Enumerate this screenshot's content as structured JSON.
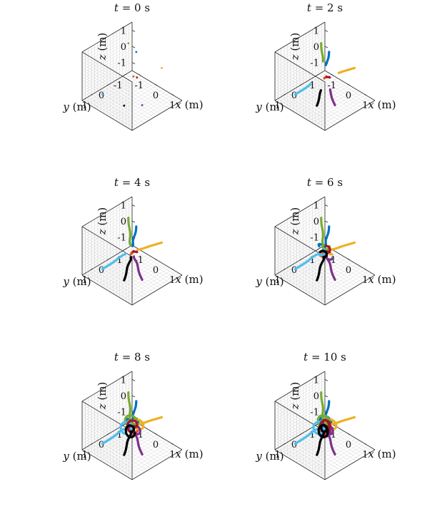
{
  "chart_data": {
    "type": "line3d",
    "layout": "3x2 grid of 3D trajectory plots",
    "axes": {
      "xlabel": {
        "var": "x",
        "unit": "(m)"
      },
      "ylabel": {
        "var": "y",
        "unit": "(m)"
      },
      "zlabel": {
        "var": "z",
        "unit": "(m)"
      },
      "xticks": [
        "-1",
        "0",
        "1"
      ],
      "yticks": [
        "-1",
        "0",
        "1"
      ],
      "zticks": [
        "-1",
        "0",
        "1"
      ],
      "xlim": [
        -1.5,
        1.5
      ],
      "ylim": [
        -1.5,
        1.5
      ],
      "zlim": [
        -1.5,
        1.5
      ],
      "grid": true
    },
    "series_colors": [
      "#0072BD",
      "#D95319",
      "#EDB120",
      "#7E2F8E",
      "#77AC30",
      "#4DBEEE",
      "#A2142F",
      "#000000"
    ],
    "panels": [
      {
        "title": {
          "var": "t",
          "rest": " = 0 s"
        },
        "t": 0
      },
      {
        "title": {
          "var": "t",
          "rest": " = 2 s"
        },
        "t": 2
      },
      {
        "title": {
          "var": "t",
          "rest": " = 4 s"
        },
        "t": 4
      },
      {
        "title": {
          "var": "t",
          "rest": " = 6 s"
        },
        "t": 6
      },
      {
        "title": {
          "var": "t",
          "rest": " = 8 s"
        },
        "t": 8
      },
      {
        "title": {
          "var": "t",
          "rest": " = 10 s"
        },
        "t": 10
      }
    ]
  }
}
